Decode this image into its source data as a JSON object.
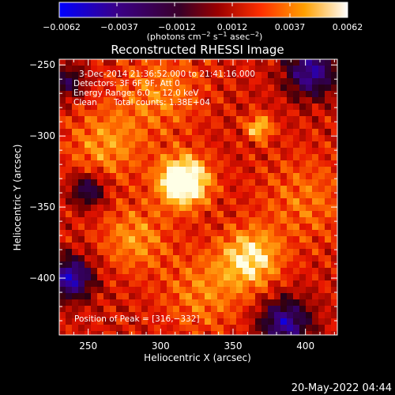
{
  "colorbar": {
    "ticks": [
      "−0.0062",
      "−0.0037",
      "−0.0012",
      "0.0012",
      "0.0037",
      "0.0062"
    ],
    "units_text": "(photons cm",
    "units_sup1": "−2",
    "units_mid": " s",
    "units_sup2": "−1",
    "units_end": " asec",
    "units_sup3": "−2",
    "units_close": ")",
    "range": [
      -0.0062,
      0.0062
    ]
  },
  "title": "Reconstructed RHESSI Image",
  "annotation": {
    "time": "3-Dec-2014 21:36:52.000 to 21:41:16.000",
    "detectors": "Detectors: 3F 6F 9F, Att 0",
    "energy": "Energy Range: 6.0 − 12.0 keV",
    "clean": "Clean",
    "counts": "Total counts: 1.38E+04"
  },
  "peak_label": "Position of Peak = [316,−332]",
  "footer_date": "20-May-2022 04:44",
  "colors": {
    "background": "#000000",
    "cmap": [
      "#0000ff",
      "#3a0088",
      "#3a0028",
      "#9a0000",
      "#ff3000",
      "#ffa000",
      "#ffff80",
      "#ffffff"
    ]
  },
  "chart_data": {
    "type": "heatmap",
    "title": "Reconstructed RHESSI Image",
    "xlabel": "Heliocentric X (arcsec)",
    "ylabel": "Heliocentric Y (arcsec)",
    "xlim": [
      230,
      422
    ],
    "ylim": [
      -440,
      -246
    ],
    "xticks": [
      {
        "value": 250,
        "label": "250"
      },
      {
        "value": 300,
        "label": "300"
      },
      {
        "value": 350,
        "label": "350"
      },
      {
        "value": 400,
        "label": "400"
      }
    ],
    "yticks": [
      {
        "value": -250,
        "label": "−250"
      },
      {
        "value": -300,
        "label": "−300"
      },
      {
        "value": -350,
        "label": "−350"
      },
      {
        "value": -400,
        "label": "−400"
      }
    ],
    "peak": [
      316,
      -332
    ],
    "sources": [
      {
        "x": 316,
        "y": -332,
        "amp": 1.0,
        "sigma": 12
      },
      {
        "x": 368,
        "y": -294,
        "amp": 0.55,
        "sigma": 6
      },
      {
        "x": 362,
        "y": -386,
        "amp": 0.6,
        "sigma": 14
      },
      {
        "x": 262,
        "y": -306,
        "amp": 0.35,
        "sigma": 18
      },
      {
        "x": 282,
        "y": -372,
        "amp": 0.35,
        "sigma": 16
      },
      {
        "x": 330,
        "y": -410,
        "amp": 0.3,
        "sigma": 20
      },
      {
        "x": 400,
        "y": -345,
        "amp": 0.25,
        "sigma": 22
      },
      {
        "x": 300,
        "y": -270,
        "amp": 0.3,
        "sigma": 20
      }
    ],
    "negative_regions": [
      {
        "x": 404,
        "y": -255,
        "amp": 0.8,
        "sigma": 12
      },
      {
        "x": 386,
        "y": -432,
        "amp": 0.8,
        "sigma": 12
      },
      {
        "x": 238,
        "y": -400,
        "amp": 0.9,
        "sigma": 10
      },
      {
        "x": 250,
        "y": -338,
        "amp": 0.6,
        "sigma": 8
      },
      {
        "x": 236,
        "y": -262,
        "amp": 0.5,
        "sigma": 8
      }
    ]
  }
}
